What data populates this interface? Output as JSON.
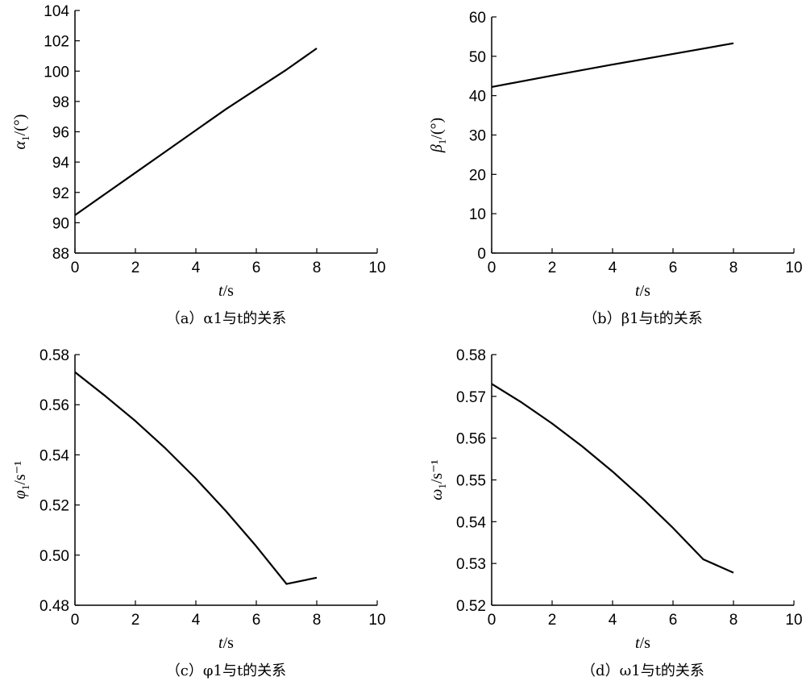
{
  "chart_data": [
    {
      "type": "line",
      "caption": "（a）α1与t的关系",
      "xlabel": "t/s",
      "ylabel": "α1/(°)",
      "xlim": [
        0,
        10
      ],
      "ylim": [
        88,
        104
      ],
      "xticks": [
        0,
        2,
        4,
        6,
        8,
        10
      ],
      "yticks": [
        88,
        90,
        92,
        94,
        96,
        98,
        100,
        102,
        104
      ],
      "grid": false,
      "series": [
        {
          "x": [
            0,
            1,
            2,
            3,
            4,
            5,
            6,
            7,
            8
          ],
          "y": [
            90.5,
            91.9,
            93.3,
            94.7,
            96.1,
            97.5,
            98.8,
            100.1,
            101.5
          ]
        }
      ]
    },
    {
      "type": "line",
      "caption": "（b）β1与t的关系",
      "xlabel": "t/s",
      "ylabel": "β1/(°)",
      "xlim": [
        0,
        10
      ],
      "ylim": [
        0,
        60
      ],
      "xticks": [
        0,
        2,
        4,
        6,
        8,
        10
      ],
      "yticks": [
        0,
        10,
        20,
        30,
        40,
        50,
        60
      ],
      "grid": false,
      "series": [
        {
          "x": [
            0,
            2,
            4,
            6,
            8
          ],
          "y": [
            42.2,
            45.1,
            47.9,
            50.6,
            53.3
          ]
        }
      ]
    },
    {
      "type": "line",
      "caption": "（c）φ1与t的关系",
      "xlabel": "t/s",
      "ylabel": "φ1/s⁻¹",
      "xlim": [
        0,
        10
      ],
      "ylim": [
        0.48,
        0.58
      ],
      "xticks": [
        0,
        2,
        4,
        6,
        8,
        10
      ],
      "yticks": [
        0.48,
        0.5,
        0.52,
        0.54,
        0.56,
        0.58
      ],
      "ytick_decimals": 2,
      "grid": false,
      "series": [
        {
          "x": [
            0,
            1,
            2,
            3,
            4,
            5,
            6,
            7,
            8
          ],
          "y": [
            0.573,
            0.5635,
            0.5535,
            0.5425,
            0.5305,
            0.5175,
            0.5035,
            0.4885,
            0.491
          ]
        }
      ]
    },
    {
      "type": "line",
      "caption": "（d）ω1与t的关系",
      "xlabel": "t/s",
      "ylabel": "ω1/s⁻¹",
      "xlim": [
        0,
        10
      ],
      "ylim": [
        0.52,
        0.58
      ],
      "xticks": [
        0,
        2,
        4,
        6,
        8,
        10
      ],
      "yticks": [
        0.52,
        0.53,
        0.54,
        0.55,
        0.56,
        0.57,
        0.58
      ],
      "ytick_decimals": 2,
      "grid": false,
      "series": [
        {
          "x": [
            0,
            1,
            2,
            3,
            4,
            5,
            6,
            7,
            8
          ],
          "y": [
            0.573,
            0.5685,
            0.5635,
            0.558,
            0.552,
            0.5455,
            0.5385,
            0.531,
            0.5278
          ]
        }
      ]
    }
  ]
}
